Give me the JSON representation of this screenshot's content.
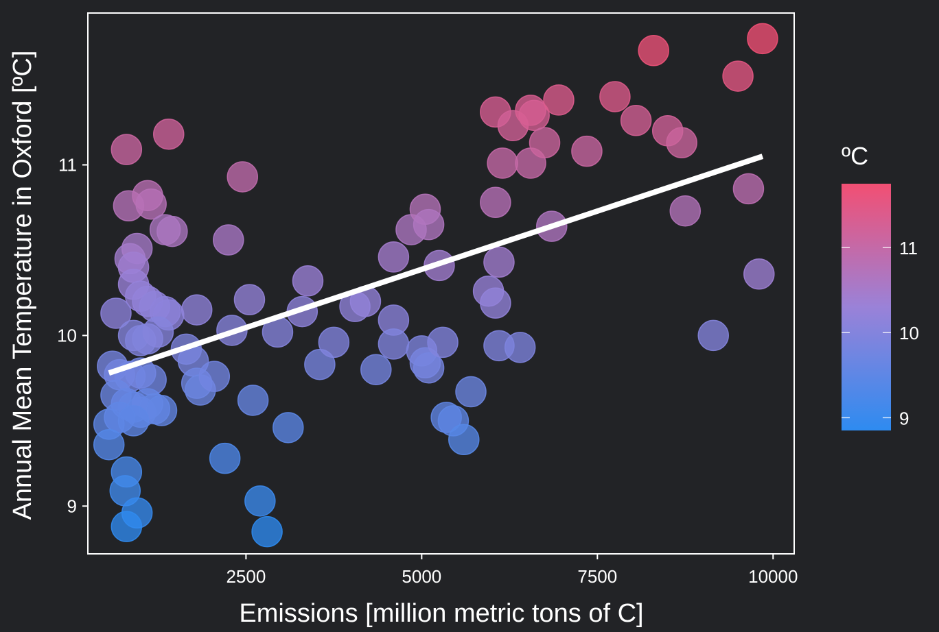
{
  "chart_data": {
    "type": "scatter",
    "title": "",
    "xlabel": "Emissions [million metric tons of C]",
    "ylabel": "Annual Mean Temperature in Oxford [ºC]",
    "xlim": [
      250,
      10300
    ],
    "ylim": [
      8.72,
      11.89
    ],
    "xticks": [
      2500,
      5000,
      7500,
      10000
    ],
    "yticks": [
      9,
      10,
      11
    ],
    "grid": false,
    "color_scale": {
      "title": "ºC",
      "low": "#2E8BF0",
      "mid": "#9A82D8",
      "high": "#F24F73",
      "min": 8.85,
      "max": 11.75,
      "ticks": [
        9,
        10,
        11
      ]
    },
    "trend_line": {
      "x": [
        550,
        9850
      ],
      "y": [
        9.78,
        11.05
      ],
      "color": "#ffffff"
    },
    "points": [
      {
        "x": 800,
        "y": 11.09
      },
      {
        "x": 830,
        "y": 10.76
      },
      {
        "x": 1100,
        "y": 10.82
      },
      {
        "x": 1150,
        "y": 10.77
      },
      {
        "x": 1400,
        "y": 11.18
      },
      {
        "x": 1350,
        "y": 10.62
      },
      {
        "x": 1450,
        "y": 10.61
      },
      {
        "x": 2450,
        "y": 10.93
      },
      {
        "x": 2250,
        "y": 10.56
      },
      {
        "x": 850,
        "y": 10.45
      },
      {
        "x": 950,
        "y": 10.51
      },
      {
        "x": 900,
        "y": 10.4
      },
      {
        "x": 900,
        "y": 10.3
      },
      {
        "x": 1000,
        "y": 10.23
      },
      {
        "x": 1100,
        "y": 10.2
      },
      {
        "x": 1200,
        "y": 10.17
      },
      {
        "x": 1350,
        "y": 10.14
      },
      {
        "x": 1400,
        "y": 10.12
      },
      {
        "x": 650,
        "y": 10.13
      },
      {
        "x": 900,
        "y": 10.0
      },
      {
        "x": 1000,
        "y": 9.97
      },
      {
        "x": 1100,
        "y": 9.98
      },
      {
        "x": 1250,
        "y": 10.02
      },
      {
        "x": 600,
        "y": 9.82
      },
      {
        "x": 700,
        "y": 9.77
      },
      {
        "x": 850,
        "y": 9.76
      },
      {
        "x": 1000,
        "y": 9.78
      },
      {
        "x": 1150,
        "y": 9.74
      },
      {
        "x": 650,
        "y": 9.65
      },
      {
        "x": 800,
        "y": 9.6
      },
      {
        "x": 900,
        "y": 9.58
      },
      {
        "x": 1000,
        "y": 9.55
      },
      {
        "x": 1100,
        "y": 9.6
      },
      {
        "x": 1200,
        "y": 9.57
      },
      {
        "x": 1300,
        "y": 9.56
      },
      {
        "x": 550,
        "y": 9.48
      },
      {
        "x": 700,
        "y": 9.52
      },
      {
        "x": 900,
        "y": 9.5
      },
      {
        "x": 550,
        "y": 9.36
      },
      {
        "x": 800,
        "y": 9.2
      },
      {
        "x": 780,
        "y": 9.09
      },
      {
        "x": 950,
        "y": 8.96
      },
      {
        "x": 800,
        "y": 8.88
      },
      {
        "x": 1650,
        "y": 9.92
      },
      {
        "x": 1750,
        "y": 9.85
      },
      {
        "x": 1800,
        "y": 9.72
      },
      {
        "x": 1850,
        "y": 9.68
      },
      {
        "x": 2050,
        "y": 9.76
      },
      {
        "x": 1800,
        "y": 10.15
      },
      {
        "x": 2300,
        "y": 10.03
      },
      {
        "x": 2550,
        "y": 10.21
      },
      {
        "x": 2950,
        "y": 10.02
      },
      {
        "x": 3300,
        "y": 10.14
      },
      {
        "x": 3380,
        "y": 10.32
      },
      {
        "x": 3550,
        "y": 9.83
      },
      {
        "x": 3750,
        "y": 9.96
      },
      {
        "x": 4050,
        "y": 10.17
      },
      {
        "x": 4200,
        "y": 10.2
      },
      {
        "x": 4350,
        "y": 9.8
      },
      {
        "x": 4600,
        "y": 10.09
      },
      {
        "x": 4600,
        "y": 9.95
      },
      {
        "x": 4600,
        "y": 10.46
      },
      {
        "x": 4850,
        "y": 10.62
      },
      {
        "x": 5050,
        "y": 10.74
      },
      {
        "x": 5100,
        "y": 10.65
      },
      {
        "x": 5250,
        "y": 10.41
      },
      {
        "x": 5000,
        "y": 9.91
      },
      {
        "x": 5050,
        "y": 9.84
      },
      {
        "x": 5100,
        "y": 9.81
      },
      {
        "x": 5300,
        "y": 9.96
      },
      {
        "x": 5350,
        "y": 9.52
      },
      {
        "x": 5450,
        "y": 9.5
      },
      {
        "x": 5600,
        "y": 9.39
      },
      {
        "x": 5700,
        "y": 9.67
      },
      {
        "x": 2200,
        "y": 9.28
      },
      {
        "x": 2600,
        "y": 9.62
      },
      {
        "x": 3100,
        "y": 9.46
      },
      {
        "x": 2700,
        "y": 9.03
      },
      {
        "x": 2800,
        "y": 8.85
      },
      {
        "x": 5950,
        "y": 10.26
      },
      {
        "x": 6050,
        "y": 10.19
      },
      {
        "x": 6100,
        "y": 10.43
      },
      {
        "x": 6100,
        "y": 9.94
      },
      {
        "x": 6400,
        "y": 9.93
      },
      {
        "x": 6050,
        "y": 10.78
      },
      {
        "x": 6150,
        "y": 11.01
      },
      {
        "x": 6050,
        "y": 11.31
      },
      {
        "x": 6300,
        "y": 11.23
      },
      {
        "x": 6550,
        "y": 11.32
      },
      {
        "x": 6600,
        "y": 11.29
      },
      {
        "x": 6550,
        "y": 11.01
      },
      {
        "x": 6750,
        "y": 11.13
      },
      {
        "x": 6950,
        "y": 11.38
      },
      {
        "x": 6850,
        "y": 10.64
      },
      {
        "x": 7350,
        "y": 11.08
      },
      {
        "x": 7750,
        "y": 11.4
      },
      {
        "x": 8050,
        "y": 11.26
      },
      {
        "x": 8300,
        "y": 11.67
      },
      {
        "x": 8500,
        "y": 11.2
      },
      {
        "x": 8700,
        "y": 11.13
      },
      {
        "x": 8750,
        "y": 10.73
      },
      {
        "x": 9150,
        "y": 10.0
      },
      {
        "x": 9500,
        "y": 11.52
      },
      {
        "x": 9650,
        "y": 10.86
      },
      {
        "x": 9800,
        "y": 10.36
      },
      {
        "x": 9850,
        "y": 11.74
      }
    ]
  }
}
